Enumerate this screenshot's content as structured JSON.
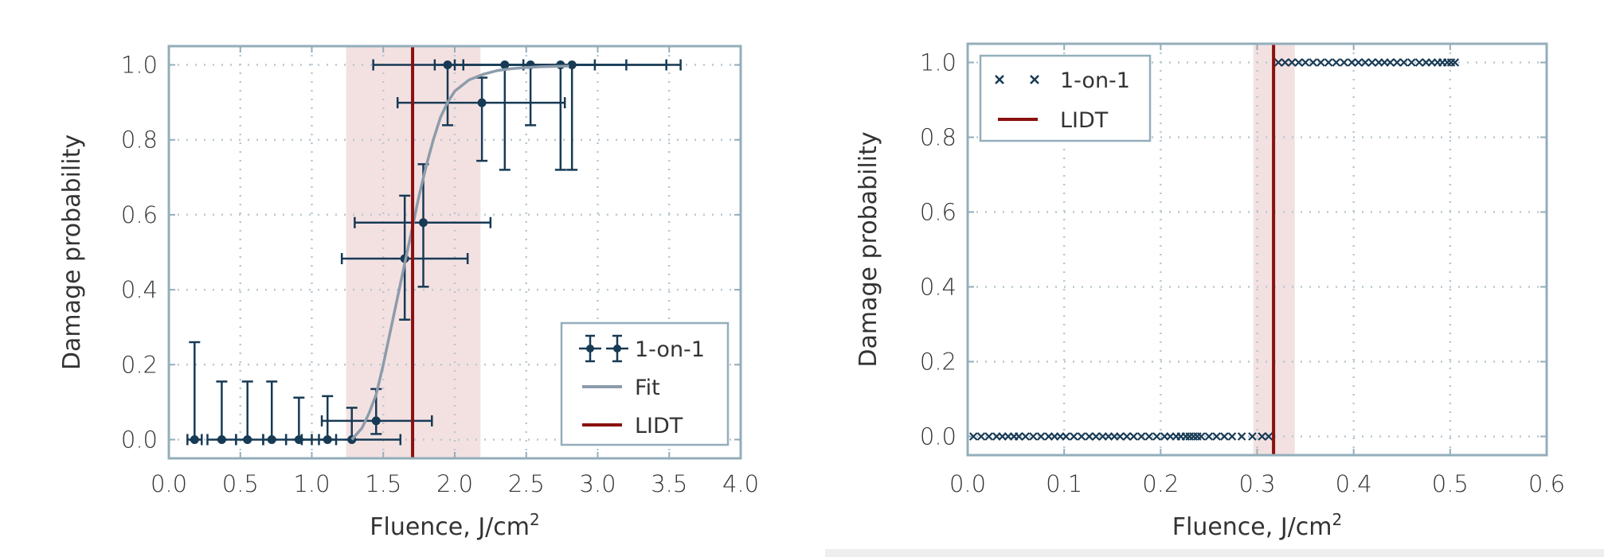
{
  "colors": {
    "data": "#173a55",
    "lidt": "#8b1010",
    "band": "#f3e1e1",
    "fit": "#8c9cab",
    "frame": "#93aebb",
    "grid": "#b8c8d0"
  },
  "chart_data": [
    {
      "type": "scatter",
      "xlabel": "Fluence, J/cm",
      "xlabel_sup": "2",
      "ylabel": "Damage probability",
      "xlim": [
        0.0,
        4.0
      ],
      "ylim": [
        -0.05,
        1.05
      ],
      "xticks": [
        "0.0",
        "0.5",
        "1.0",
        "1.5",
        "2.0",
        "2.5",
        "3.0",
        "3.5",
        "4.0"
      ],
      "yticks": [
        "0.0",
        "0.2",
        "0.4",
        "0.6",
        "0.8",
        "1.0"
      ],
      "grid": true,
      "legend_position": "lower-right",
      "legend": [
        "1-on-1",
        "Fit",
        "LIDT"
      ],
      "series": [
        {
          "name": "1-on-1",
          "kind": "errorbar",
          "points": [
            {
              "x": 0.18,
              "y": 0.0,
              "xlo": 0.13,
              "xhi": 0.23,
              "ylo": 0.0,
              "yhi": 0.26
            },
            {
              "x": 0.37,
              "y": 0.0,
              "xlo": 0.27,
              "xhi": 0.47,
              "ylo": 0.0,
              "yhi": 0.155
            },
            {
              "x": 0.55,
              "y": 0.0,
              "xlo": 0.47,
              "xhi": 0.66,
              "ylo": 0.0,
              "yhi": 0.155
            },
            {
              "x": 0.72,
              "y": 0.0,
              "xlo": 0.66,
              "xhi": 0.82,
              "ylo": 0.0,
              "yhi": 0.155
            },
            {
              "x": 0.91,
              "y": 0.0,
              "xlo": 0.82,
              "xhi": 1.0,
              "ylo": 0.0,
              "yhi": 0.112
            },
            {
              "x": 1.11,
              "y": 0.0,
              "xlo": 1.05,
              "xhi": 1.17,
              "ylo": 0.0,
              "yhi": 0.116
            },
            {
              "x": 1.28,
              "y": 0.0,
              "xlo": 0.93,
              "xhi": 1.62,
              "ylo": 0.0,
              "yhi": 0.085
            },
            {
              "x": 1.45,
              "y": 0.05,
              "xlo": 1.07,
              "xhi": 1.84,
              "ylo": 0.015,
              "yhi": 0.135
            },
            {
              "x": 1.65,
              "y": 0.483,
              "xlo": 1.21,
              "xhi": 2.09,
              "ylo": 0.32,
              "yhi": 0.651
            },
            {
              "x": 1.78,
              "y": 0.579,
              "xlo": 1.3,
              "xhi": 2.25,
              "ylo": 0.408,
              "yhi": 0.735
            },
            {
              "x": 2.19,
              "y": 0.899,
              "xlo": 1.6,
              "xhi": 2.77,
              "ylo": 0.744,
              "yhi": 0.966
            },
            {
              "x": 1.95,
              "y": 1.0,
              "xlo": 1.86,
              "xhi": 2.06,
              "ylo": 0.839,
              "yhi": 1.0
            },
            {
              "x": 2.35,
              "y": 1.0,
              "xlo": 1.43,
              "xhi": 3.2,
              "ylo": 0.72,
              "yhi": 1.0
            },
            {
              "x": 2.53,
              "y": 1.0,
              "xlo": 2.48,
              "xhi": 2.98,
              "ylo": 0.839,
              "yhi": 1.0
            },
            {
              "x": 2.74,
              "y": 1.0,
              "xlo": 2.0,
              "xhi": 3.48,
              "ylo": 0.72,
              "yhi": 1.0
            },
            {
              "x": 2.82,
              "y": 1.0,
              "xlo": 2.06,
              "xhi": 3.58,
              "ylo": 0.72,
              "yhi": 1.0
            }
          ]
        },
        {
          "name": "Fit",
          "kind": "line",
          "x": [
            1.28,
            1.35,
            1.4,
            1.45,
            1.5,
            1.55,
            1.6,
            1.65,
            1.7,
            1.75,
            1.8,
            1.85,
            1.9,
            1.95,
            2.0,
            2.1,
            2.2,
            2.3,
            2.4,
            2.5,
            2.6,
            2.7,
            2.8
          ],
          "y": [
            0.0,
            0.03,
            0.07,
            0.12,
            0.2,
            0.29,
            0.38,
            0.47,
            0.56,
            0.65,
            0.73,
            0.8,
            0.86,
            0.9,
            0.93,
            0.96,
            0.975,
            0.985,
            0.99,
            0.993,
            0.995,
            0.996,
            0.997
          ]
        }
      ],
      "lidt": 1.705,
      "lidt_band": [
        1.24,
        2.18
      ]
    },
    {
      "type": "scatter",
      "xlabel": "Fluence, J/cm",
      "xlabel_sup": "2",
      "ylabel": "Damage probability",
      "xlim": [
        0.0,
        0.6
      ],
      "ylim": [
        -0.05,
        1.05
      ],
      "xticks": [
        "0.0",
        "0.1",
        "0.2",
        "0.3",
        "0.4",
        "0.5",
        "0.6"
      ],
      "yticks": [
        "0.0",
        "0.2",
        "0.4",
        "0.6",
        "0.8",
        "1.0"
      ],
      "grid": true,
      "legend_position": "upper-left",
      "legend": [
        "1-on-1",
        "LIDT"
      ],
      "series": [
        {
          "name": "1-on-1",
          "kind": "marker-x",
          "x": [
            0.006,
            0.014,
            0.022,
            0.03,
            0.036,
            0.042,
            0.048,
            0.053,
            0.06,
            0.068,
            0.076,
            0.084,
            0.09,
            0.096,
            0.102,
            0.11,
            0.118,
            0.126,
            0.133,
            0.14,
            0.146,
            0.152,
            0.158,
            0.165,
            0.172,
            0.18,
            0.188,
            0.196,
            0.204,
            0.21,
            0.216,
            0.221,
            0.226,
            0.23,
            0.234,
            0.238,
            0.242,
            0.25,
            0.258,
            0.266,
            0.274,
            0.284,
            0.295,
            0.305,
            0.312,
            0.322,
            0.329,
            0.336,
            0.343,
            0.35,
            0.358,
            0.366,
            0.374,
            0.382,
            0.39,
            0.398,
            0.405,
            0.412,
            0.419,
            0.426,
            0.432,
            0.438,
            0.445,
            0.452,
            0.46,
            0.468,
            0.475,
            0.481,
            0.487,
            0.492,
            0.497,
            0.501,
            0.505
          ],
          "y": [
            0,
            0,
            0,
            0,
            0,
            0,
            0,
            0,
            0,
            0,
            0,
            0,
            0,
            0,
            0,
            0,
            0,
            0,
            0,
            0,
            0,
            0,
            0,
            0,
            0,
            0,
            0,
            0,
            0,
            0,
            0,
            0,
            0,
            0,
            0,
            0,
            0,
            0,
            0,
            0,
            0,
            0,
            0,
            0,
            0,
            1,
            1,
            1,
            1,
            1,
            1,
            1,
            1,
            1,
            1,
            1,
            1,
            1,
            1,
            1,
            1,
            1,
            1,
            1,
            1,
            1,
            1,
            1,
            1,
            1,
            1,
            1,
            1
          ]
        }
      ],
      "lidt": 0.317,
      "lidt_band": [
        0.296,
        0.339
      ]
    }
  ]
}
